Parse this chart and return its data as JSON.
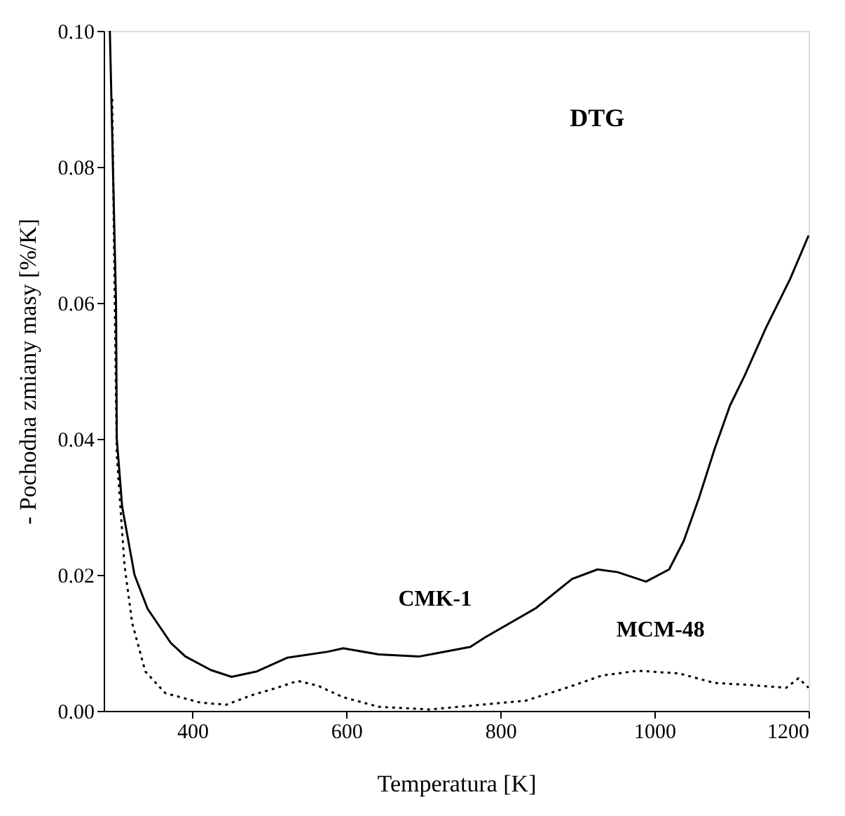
{
  "chart_data": {
    "type": "line",
    "xlabel": "Temperatura [K]",
    "ylabel": "- Pochodna zmiany masy [%/K]",
    "xlim": [
      285,
      1200
    ],
    "ylim": [
      0,
      0.1
    ],
    "xticks": [
      400,
      600,
      800,
      {
        "value": 1000,
        "label": "1000"
      },
      {
        "value": 1200,
        "label": "1200"
      }
    ],
    "yticks": [
      {
        "value": 0,
        "label": "0.00"
      },
      0.02,
      0.04,
      0.06,
      0.08,
      {
        "value": 0.1,
        "label": "0.10"
      }
    ],
    "grid": false,
    "annotations": [
      "DTG",
      "CMK-1",
      "MCM-48"
    ],
    "series": [
      {
        "color": "#000000",
        "line_style": "solid",
        "x": [
          293,
          297,
          301,
          302,
          309,
          325,
          342,
          372,
          391,
          424,
          451,
          484,
          523,
          576,
          596,
          642,
          695,
          714,
          761,
          780,
          846,
          893,
          926,
          952,
          989,
          1019,
          1038,
          1058,
          1078,
          1098,
          1117,
          1145,
          1176,
          1200
        ],
        "values": [
          0.1,
          0.08,
          0.06,
          0.04,
          0.03,
          0.02,
          0.015,
          0.01,
          0.008,
          0.006,
          0.005,
          0.0058,
          0.0078,
          0.0087,
          0.0092,
          0.0083,
          0.008,
          0.0084,
          0.0094,
          0.0108,
          0.0151,
          0.0194,
          0.0208,
          0.0204,
          0.019,
          0.0208,
          0.025,
          0.0314,
          0.0385,
          0.0449,
          0.0493,
          0.0564,
          0.0635,
          0.0699
        ]
      },
      {
        "color": "#000000",
        "line_style": "dotted",
        "x": [
          296,
          302,
          312,
          322,
          339,
          365,
          411,
          444,
          477,
          510,
          537,
          563,
          596,
          642,
          708,
          833,
          886,
          932,
          979,
          1032,
          1078,
          1124,
          1171,
          1187,
          1200
        ],
        "values": [
          0.09,
          0.0377,
          0.0214,
          0.0129,
          0.0058,
          0.0026,
          0.0012,
          0.0009,
          0.0023,
          0.0034,
          0.0044,
          0.0037,
          0.002,
          0.0006,
          0.0002,
          0.0015,
          0.0034,
          0.0052,
          0.0059,
          0.0055,
          0.0041,
          0.0038,
          0.0034,
          0.0048,
          0.0034
        ]
      }
    ]
  }
}
